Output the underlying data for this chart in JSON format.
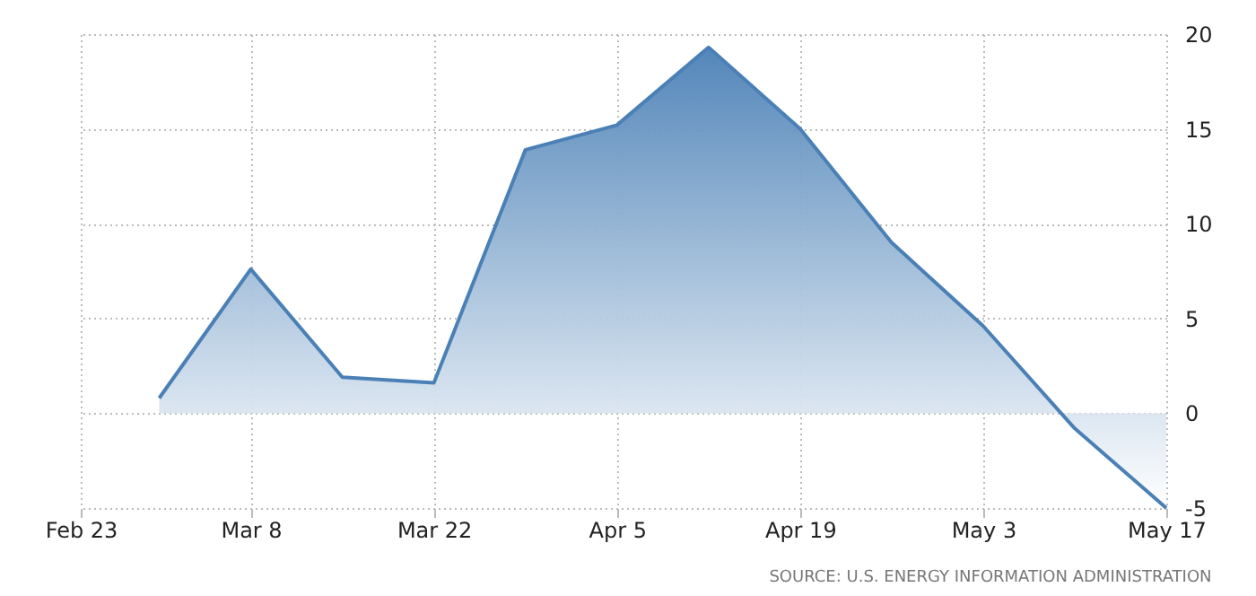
{
  "chart_data": {
    "type": "area",
    "x": [
      "--03-01",
      "--03-08",
      "--03-15",
      "--03-22",
      "--03-29",
      "--04-05",
      "--04-12",
      "--04-19",
      "--04-26",
      "--05-03",
      "--05-10",
      "--05-17"
    ],
    "series": [
      {
        "color": "#4a80b6",
        "values": [
          0.8,
          7.6,
          1.9,
          1.6,
          13.9,
          15.2,
          19.3,
          15.0,
          9.0,
          4.6,
          -0.8,
          -5.0
        ]
      }
    ],
    "xlim": [
      "--02-23",
      "--05-17"
    ],
    "xticks": [
      {
        "value": "--02-23",
        "label": "Feb 23"
      },
      {
        "value": "--03-08",
        "label": "Mar 8"
      },
      {
        "value": "--03-22",
        "label": "Mar 22"
      },
      {
        "value": "--04-05",
        "label": "Apr 5"
      },
      {
        "value": "--04-19",
        "label": "Apr 19"
      },
      {
        "value": "--05-03",
        "label": "May 3"
      },
      {
        "value": "--05-17",
        "label": "May 17"
      }
    ],
    "ylim": [
      -5,
      20
    ],
    "yticks": [
      -5,
      0,
      5,
      10,
      15,
      20
    ],
    "grid": true,
    "marker": "none",
    "line_style": "solid",
    "annotations": [
      "SOURCE: U.S. ENERGY INFORMATION ADMINISTRATION"
    ]
  }
}
